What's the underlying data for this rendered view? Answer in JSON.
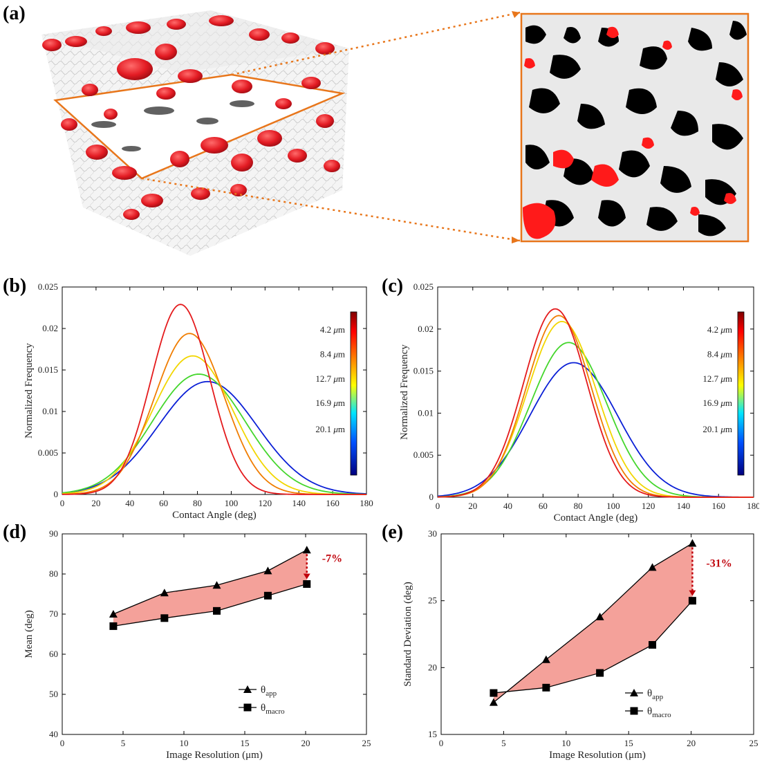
{
  "panels": {
    "a": "(a)",
    "b": "(b)",
    "c": "(c)",
    "d": "(d)",
    "e": "(e)"
  },
  "colors": {
    "red": "#e41a1c",
    "orange": "#f07d00",
    "yellow": "#f2d600",
    "green": "#44d62c",
    "blue": "#0a1fd6",
    "fill": "#f4a19a",
    "annot": "#c0000a",
    "orange_line": "#e8761b"
  },
  "chart_data": [
    {
      "id": "b",
      "type": "line",
      "xlabel": "Contact Angle (deg)",
      "ylabel": "Normalized Frequency",
      "xlim": [
        0,
        180
      ],
      "ylim": [
        0,
        0.025
      ],
      "xticks": [
        "0",
        "20",
        "40",
        "60",
        "80",
        "100",
        "120",
        "140",
        "160",
        "180"
      ],
      "yticks": [
        "0",
        "0.005",
        "0.01",
        "0.015",
        "0.02",
        "0.025"
      ],
      "colorbar_labels": [
        "4.2 μm",
        "8.4 μm",
        "12.7 μm",
        "16.9 μm",
        "20.1 μm"
      ],
      "series": [
        {
          "name": "4.2 μm",
          "mean": 70,
          "sd": 17.4,
          "peak": 0.0229,
          "color": "#e41a1c"
        },
        {
          "name": "8.4 μm",
          "mean": 75.3,
          "sd": 20.6,
          "peak": 0.0194,
          "color": "#f07d00"
        },
        {
          "name": "12.7 μm",
          "mean": 77.2,
          "sd": 23.8,
          "peak": 0.0167,
          "color": "#f2d600"
        },
        {
          "name": "16.9 μm",
          "mean": 80.8,
          "sd": 27.5,
          "peak": 0.0145,
          "color": "#44d62c"
        },
        {
          "name": "20.1 μm",
          "mean": 86,
          "sd": 29.3,
          "peak": 0.0136,
          "color": "#0a1fd6"
        }
      ]
    },
    {
      "id": "c",
      "type": "line",
      "xlabel": "Contact Angle (deg)",
      "ylabel": "Normalized Frequency",
      "xlim": [
        0,
        180
      ],
      "ylim": [
        0,
        0.025
      ],
      "xticks": [
        "0",
        "20",
        "40",
        "60",
        "80",
        "100",
        "120",
        "140",
        "160",
        "180"
      ],
      "yticks": [
        "0",
        "0.005",
        "0.01",
        "0.015",
        "0.02",
        "0.025"
      ],
      "colorbar_labels": [
        "4.2 μm",
        "8.4 μm",
        "12.7 μm",
        "16.9 μm",
        "20.1 μm"
      ],
      "series": [
        {
          "name": "4.2 μm",
          "mean": 67,
          "sd": 18.1,
          "peak": 0.0224,
          "color": "#e41a1c"
        },
        {
          "name": "8.4 μm",
          "mean": 69,
          "sd": 18.5,
          "peak": 0.0216,
          "color": "#f07d00"
        },
        {
          "name": "12.7 μm",
          "mean": 70.8,
          "sd": 19.6,
          "peak": 0.0209,
          "color": "#f2d600"
        },
        {
          "name": "16.9 μm",
          "mean": 74.6,
          "sd": 21.7,
          "peak": 0.0184,
          "color": "#44d62c"
        },
        {
          "name": "20.1 μm",
          "mean": 77.5,
          "sd": 25,
          "peak": 0.016,
          "color": "#0a1fd6"
        }
      ]
    },
    {
      "id": "d",
      "type": "line",
      "xlabel": "Image Resolution (μm)",
      "ylabel": "Mean (deg)",
      "xlim": [
        0,
        25
      ],
      "ylim": [
        40,
        90
      ],
      "xticks": [
        "0",
        "5",
        "10",
        "15",
        "20",
        "25"
      ],
      "yticks": [
        "40",
        "50",
        "60",
        "70",
        "80",
        "90"
      ],
      "x": [
        4.2,
        8.4,
        12.7,
        16.9,
        20.1
      ],
      "series": [
        {
          "name": "θapp",
          "label_main": "θ",
          "label_sub": "app",
          "marker": "triangle",
          "values": [
            70,
            75.3,
            77.2,
            80.8,
            86
          ]
        },
        {
          "name": "θmacro",
          "label_main": "θ",
          "label_sub": "macro",
          "marker": "square",
          "values": [
            67,
            69,
            70.8,
            74.6,
            77.5
          ]
        }
      ],
      "annotation": "-7%"
    },
    {
      "id": "e",
      "type": "line",
      "xlabel": "Image Resolution (μm)",
      "ylabel": "Standard Deviation (deg)",
      "xlim": [
        0,
        25
      ],
      "ylim": [
        15,
        30
      ],
      "xticks": [
        "0",
        "5",
        "10",
        "15",
        "20",
        "25"
      ],
      "yticks": [
        "15",
        "20",
        "25",
        "30"
      ],
      "x": [
        4.2,
        8.4,
        12.7,
        16.9,
        20.1
      ],
      "series": [
        {
          "name": "θapp",
          "label_main": "θ",
          "label_sub": "app",
          "marker": "triangle",
          "values": [
            17.4,
            20.6,
            23.8,
            27.5,
            29.3
          ]
        },
        {
          "name": "θmacro",
          "label_main": "θ",
          "label_sub": "macro",
          "marker": "square",
          "values": [
            18.1,
            18.5,
            19.6,
            21.7,
            25
          ]
        }
      ],
      "annotation": "-31%"
    }
  ]
}
